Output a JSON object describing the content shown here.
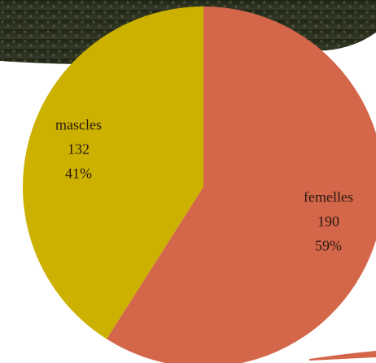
{
  "chart_data": {
    "type": "pie",
    "categories": [
      "femelles",
      "mascles"
    ],
    "values": [
      190,
      132
    ],
    "percent_labels": [
      "59%",
      "41%"
    ],
    "colors": [
      "#d4664a",
      "#ccb100"
    ]
  }
}
